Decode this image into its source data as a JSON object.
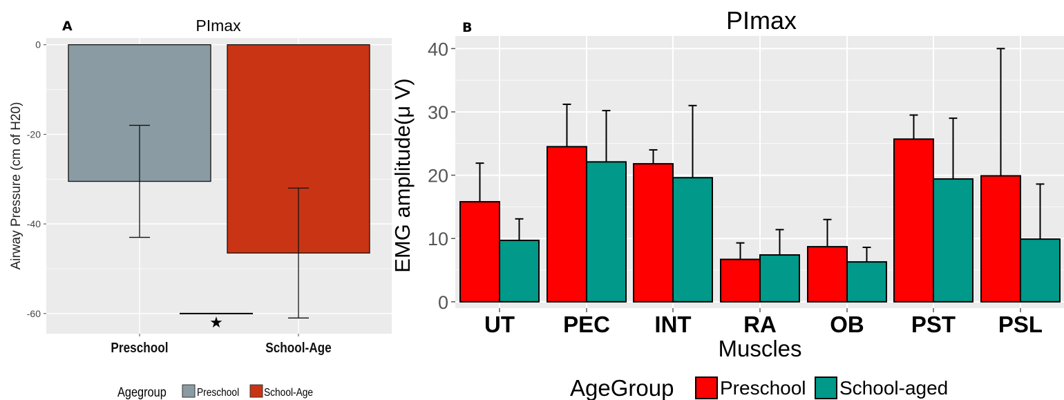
{
  "panel_a_letter": "A",
  "panel_b_letter": "B",
  "significance_marker": "★",
  "colors": {
    "panel_bg": "#ebebeb",
    "grid": "#ffffff",
    "preschool_a": "#8a9ba3",
    "schoolage_a": "#c93414",
    "preschool_b": "#ff0000",
    "schoolaged_b": "#00998a"
  },
  "chart_data": [
    {
      "type": "bar",
      "title": "PImax",
      "xlabel": "",
      "ylabel": "Airway Pressure (cm of H20)",
      "ylim": [
        -64.5,
        1.5
      ],
      "yticks": [
        0,
        -20,
        -40,
        -60
      ],
      "ytick_labels": [
        "0",
        "-20",
        "-40",
        "-60"
      ],
      "categories": [
        "Preschool",
        "School-Age"
      ],
      "values": [
        -30.5,
        -46.5
      ],
      "error_lower": [
        -43,
        -61
      ],
      "error_upper": [
        -18,
        -32
      ],
      "grid": true,
      "legend": {
        "title": "Agegroup",
        "position": "bottom",
        "entries": [
          "Preschool",
          "School-Age"
        ]
      },
      "significance": {
        "between": [
          "Preschool",
          "School-Age"
        ],
        "marker": "★"
      }
    },
    {
      "type": "bar",
      "title": "PImax",
      "xlabel": "Muscles",
      "ylabel": "EMG amplitude(μ V)",
      "ylim": [
        -1,
        42
      ],
      "yticks": [
        0,
        10,
        20,
        30,
        40
      ],
      "ytick_labels": [
        "0",
        "10",
        "20",
        "30",
        "40"
      ],
      "categories": [
        "UT",
        "PEC",
        "INT",
        "RA",
        "OB",
        "PST",
        "PSL"
      ],
      "series": [
        {
          "name": "Preschool",
          "values": [
            15.8,
            24.5,
            21.8,
            6.7,
            8.7,
            25.7,
            19.9
          ],
          "error_upper": [
            21.9,
            31.2,
            24.0,
            9.3,
            13.0,
            29.5,
            40.0
          ]
        },
        {
          "name": "School-aged",
          "values": [
            9.7,
            22.1,
            19.6,
            7.4,
            6.3,
            19.4,
            9.9
          ],
          "error_upper": [
            13.1,
            30.2,
            31.0,
            11.4,
            8.6,
            29.0,
            18.6
          ]
        }
      ],
      "grid": true,
      "legend": {
        "title": "AgeGroup",
        "position": "bottom"
      }
    }
  ]
}
